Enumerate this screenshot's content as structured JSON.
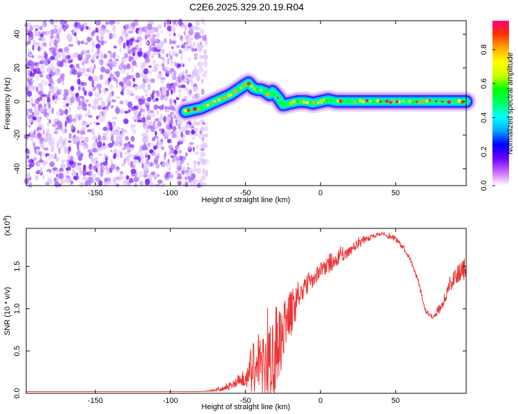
{
  "title": "C2E6.2025.329.20.19.R04",
  "chart_data": [
    {
      "type": "heatmap",
      "name": "spectrogram",
      "xlabel": "Height of straight line (km)",
      "ylabel": "Frequency (Hz)",
      "xlim": [
        -196,
        97
      ],
      "ylim": [
        -50,
        48
      ],
      "xticks": [
        -150,
        -100,
        -50,
        0,
        50
      ],
      "yticks": [
        -40,
        -20,
        0,
        20,
        40
      ],
      "colorbar": {
        "label": "Normalized spectral amplitude",
        "range": [
          0.0,
          0.97
        ],
        "ticks": [
          0.0,
          0.2,
          0.4,
          0.6,
          0.8
        ],
        "colors": [
          "#ffffff",
          "#cc66ff",
          "#6600ff",
          "#0000ff",
          "#00aaff",
          "#00ffff",
          "#00ff66",
          "#00ff00",
          "#ccff00",
          "#ffff00",
          "#ffaa00",
          "#ff3300",
          "#ff0077"
        ]
      },
      "noise_region": {
        "x": [
          -196,
          -76
        ],
        "y": [
          -50,
          48
        ],
        "amplitude": [
          0.0,
          0.2
        ]
      },
      "signal_track": {
        "x": [
          -90,
          -85,
          -80,
          -75,
          -70,
          -65,
          -60,
          -55,
          -50,
          -48,
          -45,
          -42,
          -40,
          -37,
          -34,
          -32,
          -30,
          -28,
          -25,
          -20,
          -15,
          -10,
          -5,
          0,
          5,
          10,
          20,
          30,
          40,
          50,
          60,
          70,
          80,
          90,
          97
        ],
        "y": [
          -6,
          -5,
          -4,
          -2,
          0,
          2,
          4,
          7,
          10,
          11,
          8,
          7,
          7,
          6,
          4,
          6,
          4,
          2,
          -2,
          -1,
          0,
          0,
          -1,
          0,
          1,
          0,
          0,
          0,
          0,
          0,
          0,
          0,
          0,
          0,
          0
        ],
        "width_hz": 5
      }
    },
    {
      "type": "line",
      "name": "snr",
      "xlabel": "Height of straight line (km)",
      "ylabel": "SNR (10 * v/v)",
      "y_multiplier": "(x10",
      "y_multiplier_exp": "4",
      "xlim": [
        -196,
        97
      ],
      "ylim": [
        0,
        1.95
      ],
      "xticks": [
        -150,
        -100,
        -50,
        0,
        50
      ],
      "yticks": [
        0.0,
        0.5,
        1.0,
        1.5
      ],
      "color": "#ee3333",
      "envelope": {
        "x": [
          -196,
          -80,
          -75,
          -70,
          -65,
          -60,
          -55,
          -50,
          -45,
          -40,
          -35,
          -30,
          -25,
          -20,
          -15,
          -10,
          -5,
          0,
          5,
          10,
          15,
          20,
          25,
          30,
          35,
          40,
          45,
          50,
          55,
          60,
          65,
          70,
          75,
          80,
          85,
          90,
          95,
          97
        ],
        "y": [
          0.02,
          0.02,
          0.03,
          0.05,
          0.08,
          0.12,
          0.2,
          0.3,
          0.45,
          0.6,
          0.75,
          0.95,
          1.1,
          1.2,
          1.3,
          1.4,
          1.45,
          1.55,
          1.6,
          1.65,
          1.7,
          1.78,
          1.82,
          1.85,
          1.88,
          1.9,
          1.88,
          1.85,
          1.75,
          1.6,
          1.35,
          1.0,
          0.92,
          1.05,
          1.3,
          1.45,
          1.5,
          1.6
        ],
        "spike_amp": [
          0,
          0,
          0.01,
          0.03,
          0.05,
          0.08,
          0.12,
          0.25,
          0.45,
          0.6,
          0.9,
          1.0,
          0.8,
          0.6,
          0.35,
          0.25,
          0.2,
          0.18,
          0.18,
          0.18,
          0.15,
          0.15,
          0.12,
          0.08,
          0.05,
          0.04,
          0.05,
          0.06,
          0.05,
          0.05,
          0.06,
          0.06,
          0.05,
          0.1,
          0.15,
          0.15,
          0.2,
          0.2
        ]
      }
    }
  ]
}
